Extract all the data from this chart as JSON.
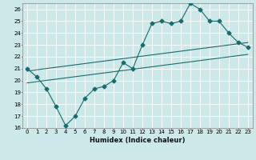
{
  "title": "",
  "xlabel": "Humidex (Indice chaleur)",
  "ylabel": "",
  "xlim": [
    -0.5,
    23.5
  ],
  "ylim": [
    16,
    26.5
  ],
  "yticks": [
    16,
    17,
    18,
    19,
    20,
    21,
    22,
    23,
    24,
    25,
    26
  ],
  "xticks": [
    0,
    1,
    2,
    3,
    4,
    5,
    6,
    7,
    8,
    9,
    10,
    11,
    12,
    13,
    14,
    15,
    16,
    17,
    18,
    19,
    20,
    21,
    22,
    23
  ],
  "bg_color": "#cce8e8",
  "line_color": "#1a6b6b",
  "grid_color": "#ffffff",
  "line1_x": [
    0,
    1,
    2,
    3,
    4,
    5,
    6,
    7,
    8,
    9,
    10,
    11,
    12,
    13,
    14,
    15,
    16,
    17,
    18,
    19,
    20,
    21,
    22,
    23
  ],
  "line1_y": [
    21.0,
    20.3,
    19.3,
    17.8,
    16.2,
    17.0,
    18.5,
    19.3,
    19.5,
    20.0,
    21.5,
    21.0,
    23.0,
    24.8,
    25.0,
    24.8,
    25.0,
    26.5,
    26.0,
    25.0,
    25.0,
    24.0,
    23.2,
    22.8
  ],
  "line2_x": [
    0,
    23
  ],
  "line2_y": [
    20.8,
    23.2
  ],
  "line3_x": [
    0,
    23
  ],
  "line3_y": [
    19.8,
    22.2
  ],
  "marker": "D",
  "markersize": 2.5,
  "linewidth": 0.8
}
